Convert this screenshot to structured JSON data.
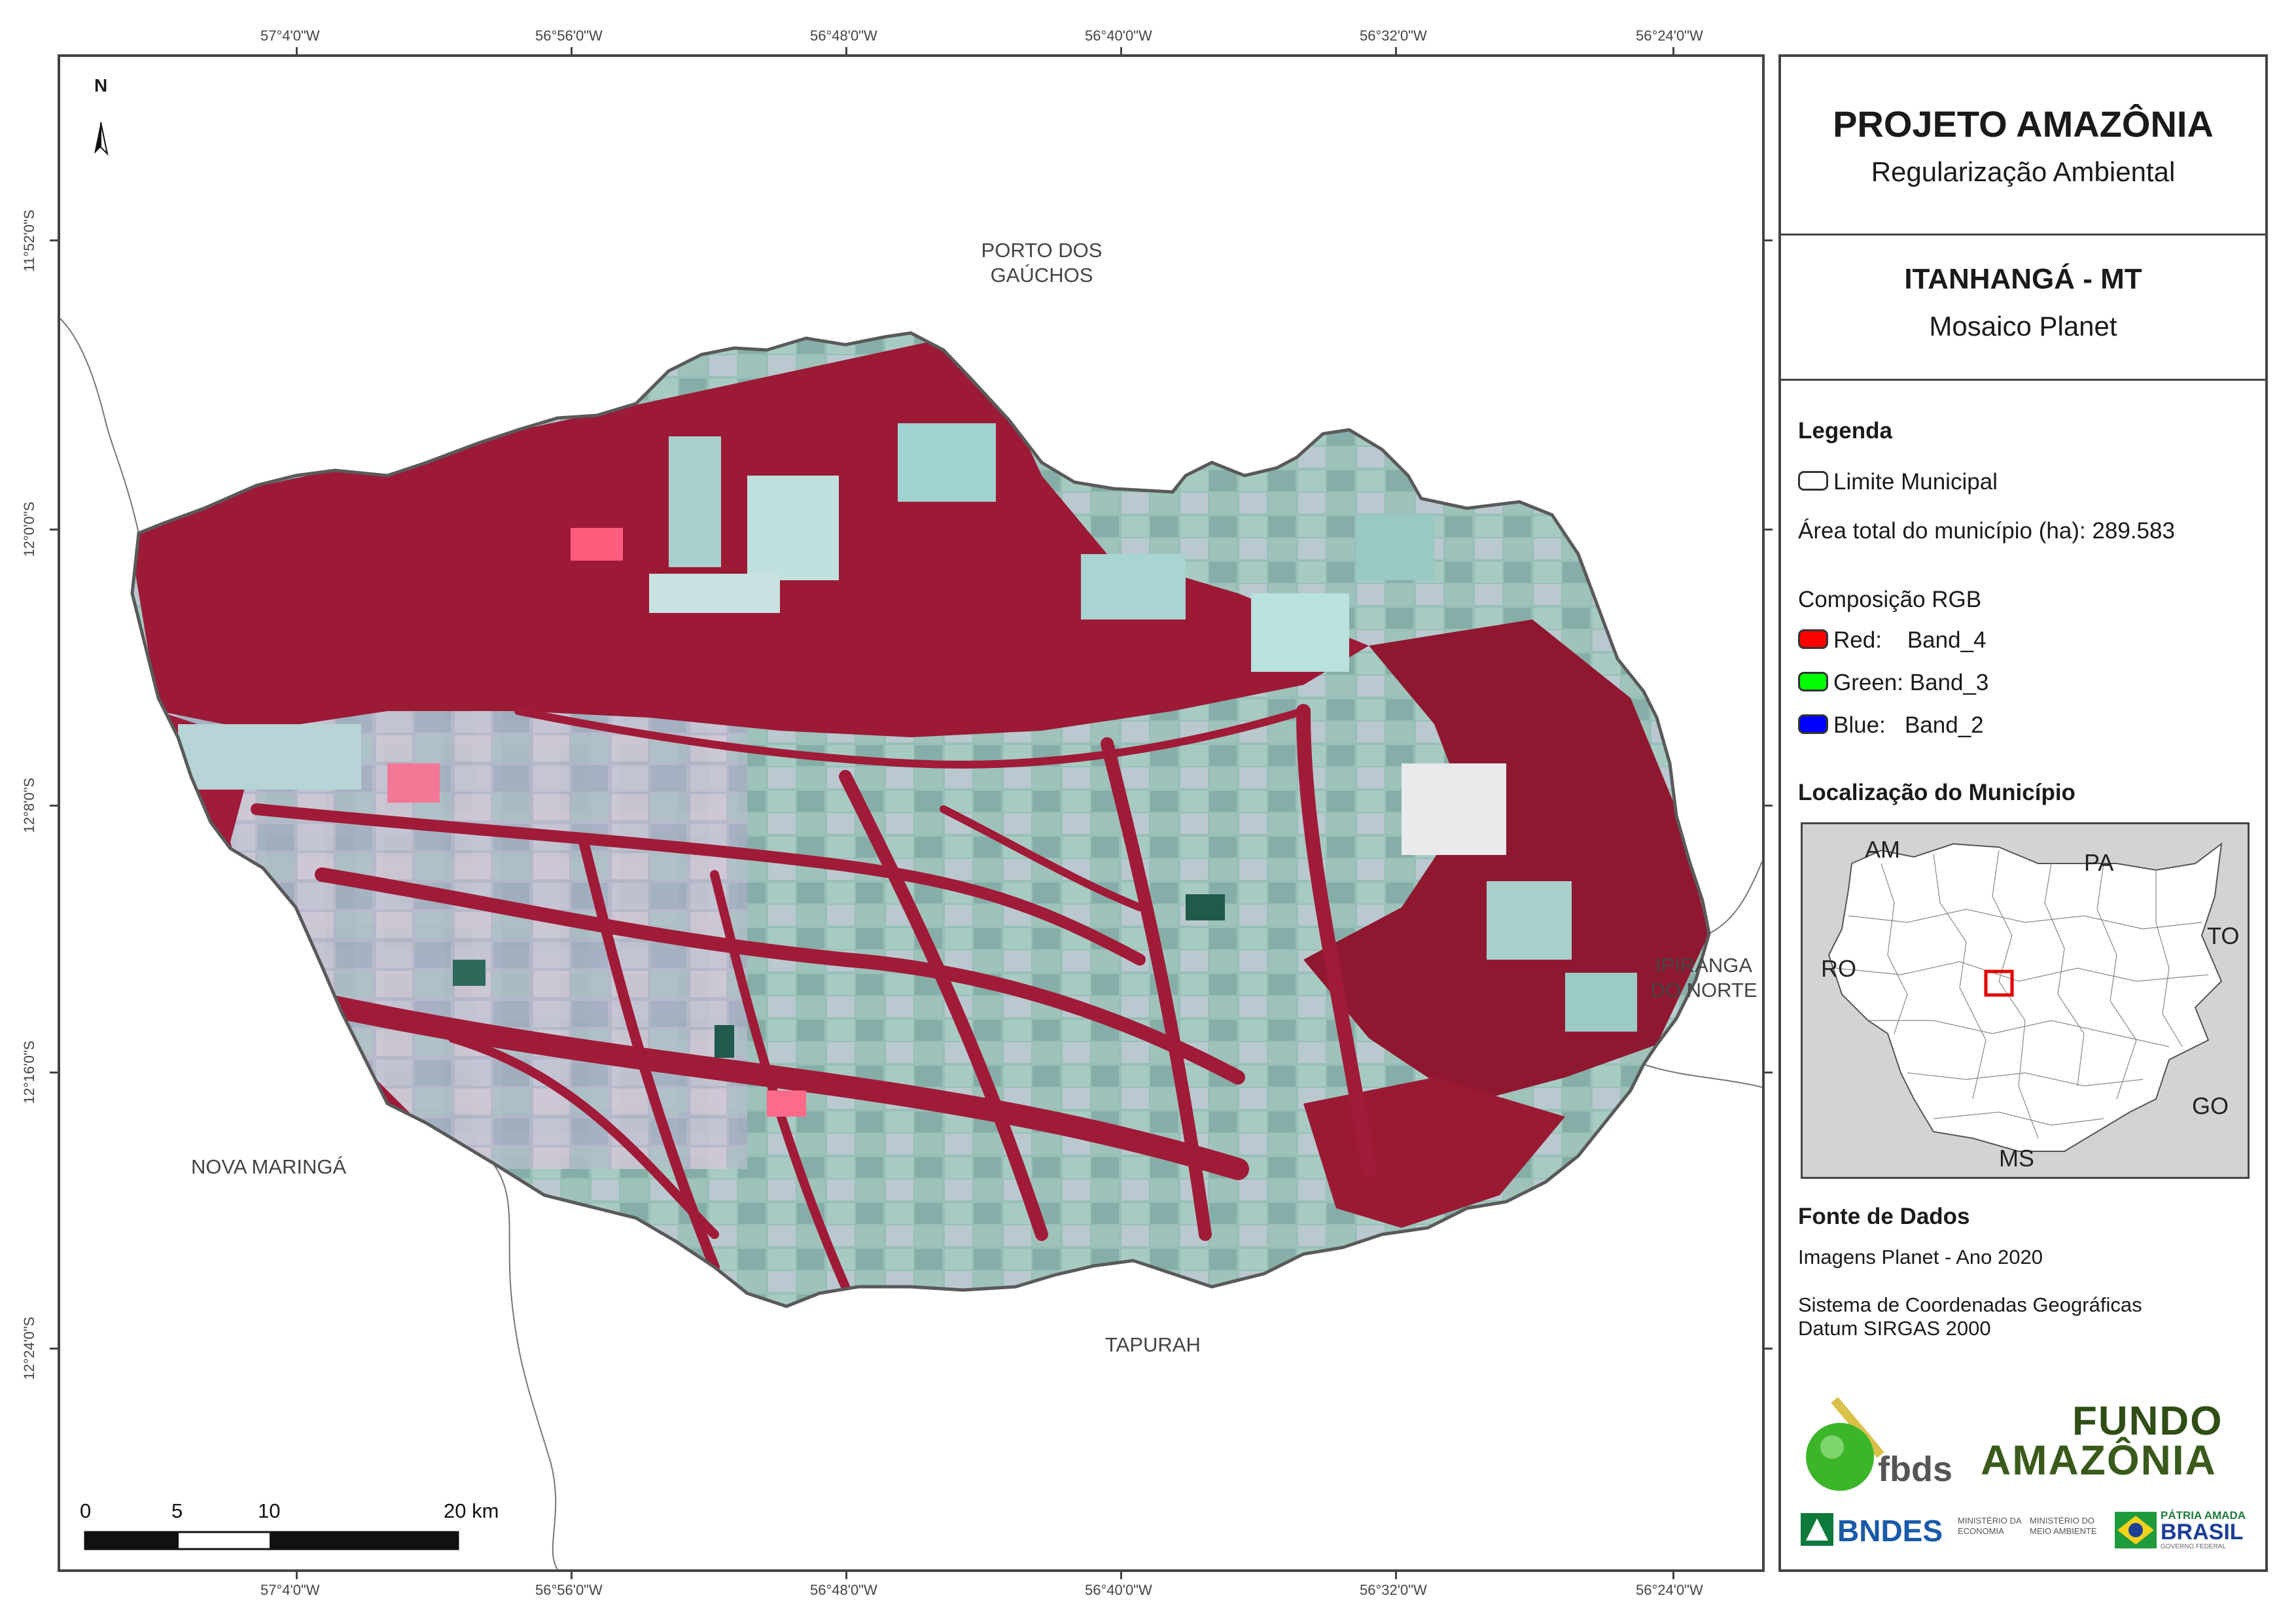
{
  "map": {
    "north_label": "N",
    "lon_labels": [
      "57°4'0\"W",
      "56°56'0\"W",
      "56°48'0\"W",
      "56°40'0\"W",
      "56°32'0\"W",
      "56°24'0\"W"
    ],
    "lat_labels": [
      "11°52'0\"S",
      "12°0'0\"S",
      "12°8'0\"S",
      "12°16'0\"S",
      "12°24'0\"S"
    ],
    "places": {
      "porto_line1": "PORTO DOS",
      "porto_line2": "GAÚCHOS",
      "ipiranga_line1": "IPIRANGA",
      "ipiranga_line2": "DO NORTE",
      "nova_maringa": "NOVA MARINGÁ",
      "tapurah": "TAPURAH"
    },
    "scale_bar": {
      "labels": [
        "0",
        "5",
        "10",
        "20 km"
      ]
    },
    "colors": {
      "forest": "#9e1a35",
      "crop": "#8fb9b3",
      "boundary": "#555555"
    }
  },
  "panel": {
    "title": "PROJETO AMAZÔNIA",
    "subtitle": "Regularização Ambiental",
    "municipality": "ITANHANGÁ - MT",
    "mosaic": "Mosaico Planet",
    "legend_title": "Legenda",
    "legend_boundary": "Limite Municipal",
    "area_total": "Área total do município (ha): 289.583",
    "rgb_title": "Composição RGB",
    "rgb": [
      {
        "label": "Red:    Band_4",
        "color": "#ff0000"
      },
      {
        "label": "Green: Band_3",
        "color": "#00ff00"
      },
      {
        "label": "Blue:   Band_2",
        "color": "#0000ff"
      }
    ],
    "location_title": "Localização do Município",
    "inset_labels": {
      "am": "AM",
      "pa": "PA",
      "ro": "RO",
      "to": "TO",
      "go": "GO",
      "ms": "MS"
    },
    "sources_title": "Fonte de Dados",
    "source_imagery": "Imagens Planet - Ano 2020",
    "crs_line1": "Sistema de Coordenadas Geográficas",
    "crs_line2": "Datum SIRGAS 2000",
    "logos": {
      "fbds": "fbds",
      "fundo_line1": "FUNDO",
      "fundo_line2": "AMAZÔNIA",
      "bndes": "BNDES",
      "min_economia_1": "MINISTÉRIO DA",
      "min_economia_2": "ECONOMIA",
      "min_ambiente_1": "MINISTÉRIO DO",
      "min_ambiente_2": "MEIO AMBIENTE",
      "patria_amada": "PÁTRIA AMADA",
      "brasil": "BRASIL",
      "governo": "GOVERNO FEDERAL"
    }
  }
}
